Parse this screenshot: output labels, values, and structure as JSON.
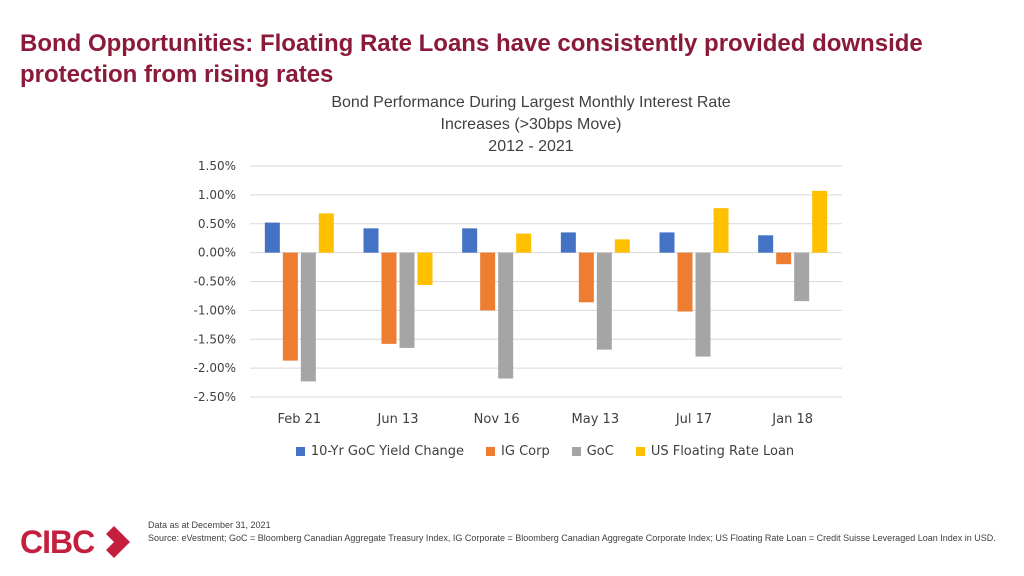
{
  "slide": {
    "title": "Bond Opportunities: Floating Rate Loans have consistently provided downside protection from rising rates"
  },
  "chart_data": {
    "type": "bar",
    "title_lines": [
      "Bond Performance During Largest Monthly Interest Rate",
      "Increases (>30bps Move)",
      "2012 - 2021"
    ],
    "categories": [
      "Feb 21",
      "Jun 13",
      "Nov 16",
      "May 13",
      "Jul 17",
      "Jan 18"
    ],
    "series": [
      {
        "name": "10-Yr GoC Yield Change",
        "color": "#4472c4",
        "values": [
          0.52,
          0.42,
          0.42,
          0.35,
          0.35,
          0.3
        ]
      },
      {
        "name": "IG Corp",
        "color": "#ed7d31",
        "values": [
          -1.87,
          -1.58,
          -1.0,
          -0.86,
          -1.02,
          -0.2
        ]
      },
      {
        "name": "GoC",
        "color": "#a5a5a5",
        "values": [
          -2.23,
          -1.65,
          -2.18,
          -1.68,
          -1.8,
          -0.84
        ]
      },
      {
        "name": "US Floating Rate Loan",
        "color": "#ffc000",
        "values": [
          0.68,
          -0.56,
          0.33,
          0.23,
          0.77,
          1.07
        ]
      }
    ],
    "ylim": [
      -2.5,
      1.5
    ],
    "yticks": [
      1.5,
      1.0,
      0.5,
      0.0,
      -0.5,
      -1.0,
      -1.5,
      -2.0,
      -2.5
    ],
    "ytick_labels": [
      "1.50%",
      "1.00%",
      "0.50%",
      "0.00%",
      "-0.50%",
      "-1.00%",
      "-1.50%",
      "-2.00%",
      "-2.50%"
    ],
    "xlabel": "",
    "ylabel": "",
    "legend_position": "bottom",
    "grid": true
  },
  "footer": {
    "date_note": "Data as at December 31, 2021",
    "source": "Source: eVestment; GoC = Bloomberg Canadian Aggregate Treasury Index, IG Corporate = Bloomberg Canadian Aggregate Corporate Index; US Floating Rate Loan = Credit Suisse Leveraged Loan Index in USD."
  },
  "brand": {
    "logo_text": "CIBC",
    "color": "#c41f3e"
  }
}
